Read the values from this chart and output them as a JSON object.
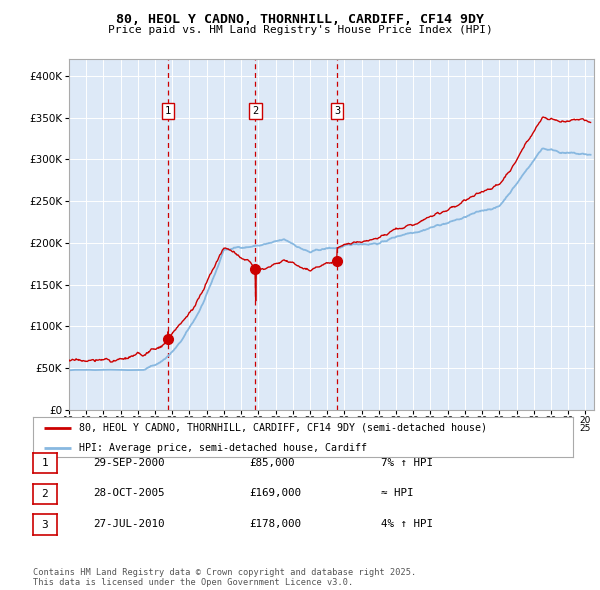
{
  "title": "80, HEOL Y CADNO, THORNHILL, CARDIFF, CF14 9DY",
  "subtitle": "Price paid vs. HM Land Registry's House Price Index (HPI)",
  "background_color": "#dce9f5",
  "plot_bg_color": "#dde9f7",
  "hpi_color": "#88b8e0",
  "price_color": "#cc0000",
  "sale_marker_color": "#cc0000",
  "vline_color": "#cc0000",
  "ylim": [
    0,
    420000
  ],
  "yticks": [
    0,
    50000,
    100000,
    150000,
    200000,
    250000,
    300000,
    350000,
    400000
  ],
  "sales": [
    {
      "date_num": 2000.75,
      "price": 85000,
      "label": "1"
    },
    {
      "date_num": 2005.83,
      "price": 169000,
      "label": "2"
    },
    {
      "date_num": 2010.57,
      "price": 178000,
      "label": "3"
    }
  ],
  "legend_entries": [
    "80, HEOL Y CADNO, THORNHILL, CARDIFF, CF14 9DY (semi-detached house)",
    "HPI: Average price, semi-detached house, Cardiff"
  ],
  "table_rows": [
    {
      "num": "1",
      "date": "29-SEP-2000",
      "price": "£85,000",
      "change": "7% ↑ HPI"
    },
    {
      "num": "2",
      "date": "28-OCT-2005",
      "price": "£169,000",
      "change": "≈ HPI"
    },
    {
      "num": "3",
      "date": "27-JUL-2010",
      "price": "£178,000",
      "change": "4% ↑ HPI"
    }
  ],
  "footnote": "Contains HM Land Registry data © Crown copyright and database right 2025.\nThis data is licensed under the Open Government Licence v3.0."
}
